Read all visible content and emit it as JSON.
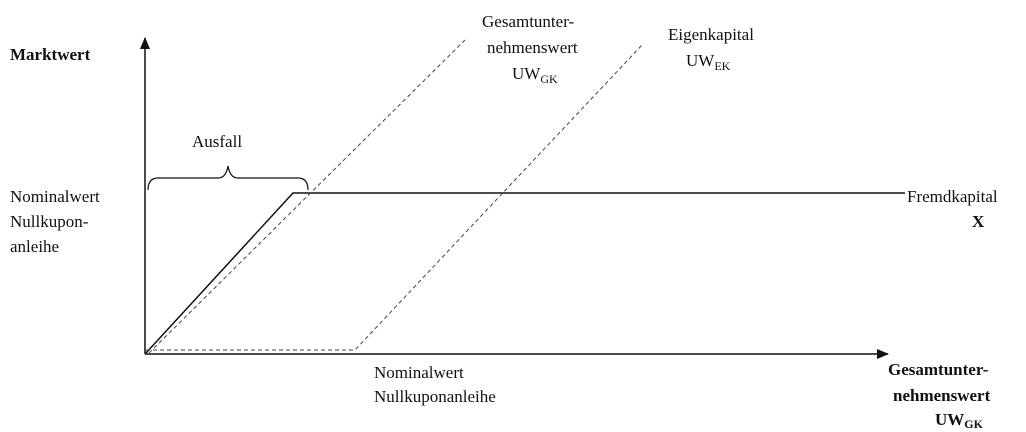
{
  "y_axis": {
    "label": "Marktwert"
  },
  "y_level": {
    "lines": [
      "Nominalwert",
      "Nullkupon-",
      "anleihe"
    ]
  },
  "brace": {
    "label": "Ausfall"
  },
  "line_total": {
    "lines": [
      "Gesamtunter-",
      "nehmenswert"
    ],
    "symbol": {
      "main": "UW",
      "sub": "GK"
    }
  },
  "line_equity": {
    "lines": [
      "Eigenkapital"
    ],
    "symbol": {
      "main": "UW",
      "sub": "EK"
    }
  },
  "line_debt": {
    "lines": [
      "Fremdkapital"
    ],
    "symbol": "X"
  },
  "x_level": {
    "lines": [
      "Nominalwert",
      "Nullkuponanleihe"
    ]
  },
  "x_axis": {
    "lines": [
      "Gesamtunter-",
      "nehmenswert"
    ],
    "symbol": {
      "main": "UW",
      "sub": "GK"
    }
  }
}
